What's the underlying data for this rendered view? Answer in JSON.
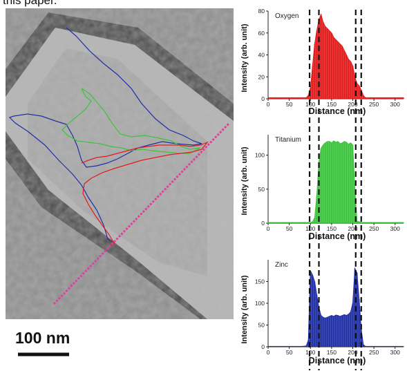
{
  "caption_fragment": "this paper.",
  "scale_bar": {
    "label": "100 nm"
  },
  "colors": {
    "oxygen": "#e21b1b",
    "titanium": "#3cc43c",
    "zinc": "#1f2fa6",
    "profile_line": "#e0409a",
    "dashes": "#111111"
  },
  "chart_data": [
    {
      "type": "bar",
      "panel": "Oxygen",
      "title": "Oxygen",
      "xlabel": "Distance (nm)",
      "ylabel": "Intensity (arb. unit)",
      "xlim": [
        0,
        320
      ],
      "ylim": [
        0,
        80
      ],
      "xticks": [
        0,
        50,
        100,
        150,
        200,
        250,
        300
      ],
      "yticks": [
        0,
        20,
        40,
        60,
        80
      ],
      "color": "#e21b1b",
      "x": [
        0,
        10,
        20,
        30,
        40,
        50,
        60,
        70,
        80,
        90,
        95,
        100,
        105,
        110,
        115,
        120,
        125,
        130,
        135,
        140,
        145,
        150,
        155,
        160,
        165,
        170,
        175,
        180,
        185,
        190,
        195,
        200,
        205,
        210,
        215,
        220,
        225,
        230,
        240,
        250,
        260,
        270,
        280,
        290,
        300,
        310,
        320
      ],
      "values": [
        1,
        1,
        1,
        1,
        1,
        1,
        1,
        1,
        1,
        1,
        3,
        10,
        30,
        50,
        62,
        72,
        77,
        70,
        66,
        64,
        62,
        60,
        56,
        54,
        52,
        50,
        48,
        44,
        40,
        36,
        34,
        30,
        20,
        14,
        12,
        8,
        3,
        1,
        1,
        1,
        1,
        1,
        1,
        1,
        1,
        1,
        1
      ],
      "dashed_lines_x": [
        98,
        120,
        207,
        220
      ]
    },
    {
      "type": "bar",
      "panel": "Titanium",
      "title": "Titanium",
      "xlabel": "Distance (nm)",
      "ylabel": "Intensity (arb. unit)",
      "xlim": [
        0,
        320
      ],
      "ylim": [
        0,
        130
      ],
      "xticks": [
        0,
        50,
        100,
        150,
        200,
        250,
        300
      ],
      "yticks": [
        0,
        50,
        100
      ],
      "color": "#3cc43c",
      "x": [
        0,
        10,
        20,
        30,
        40,
        50,
        60,
        70,
        80,
        90,
        100,
        105,
        110,
        115,
        120,
        125,
        130,
        135,
        140,
        145,
        150,
        155,
        160,
        165,
        170,
        175,
        180,
        185,
        190,
        195,
        200,
        205,
        210,
        220,
        230,
        240,
        250,
        260,
        270,
        280,
        290,
        300,
        310,
        320
      ],
      "values": [
        1,
        1,
        1,
        1,
        1,
        1,
        1,
        1,
        1,
        1,
        1,
        2,
        8,
        40,
        90,
        110,
        115,
        118,
        120,
        120,
        118,
        121,
        119,
        120,
        117,
        118,
        120,
        119,
        116,
        118,
        115,
        50,
        3,
        1,
        1,
        1,
        1,
        1,
        1,
        1,
        1,
        1,
        1,
        1
      ],
      "dashed_lines_x": [
        98,
        120,
        207,
        220
      ]
    },
    {
      "type": "bar",
      "panel": "Zinc",
      "title": "Zinc",
      "xlabel": "Distance (nm)",
      "ylabel": "Intensity (arb. unit)",
      "xlim": [
        0,
        320
      ],
      "ylim": [
        0,
        200
      ],
      "xticks": [
        0,
        50,
        100,
        150,
        200,
        250,
        300
      ],
      "yticks": [
        0,
        50,
        100,
        150
      ],
      "color": "#1f2fa6",
      "x": [
        0,
        10,
        20,
        30,
        40,
        50,
        60,
        70,
        80,
        90,
        95,
        100,
        105,
        110,
        115,
        120,
        125,
        130,
        135,
        140,
        145,
        150,
        155,
        160,
        165,
        170,
        175,
        180,
        185,
        190,
        195,
        200,
        205,
        210,
        215,
        220,
        225,
        230,
        240,
        250,
        260,
        270,
        280,
        290,
        300,
        310,
        320
      ],
      "values": [
        1,
        1,
        1,
        1,
        1,
        1,
        1,
        1,
        1,
        2,
        15,
        175,
        165,
        150,
        120,
        90,
        72,
        68,
        66,
        68,
        70,
        72,
        70,
        73,
        72,
        70,
        72,
        74,
        72,
        75,
        80,
        100,
        180,
        170,
        110,
        40,
        5,
        1,
        1,
        1,
        1,
        1,
        1,
        1,
        1,
        1,
        1
      ],
      "dashed_lines_x": [
        98,
        120,
        207,
        220
      ]
    }
  ]
}
